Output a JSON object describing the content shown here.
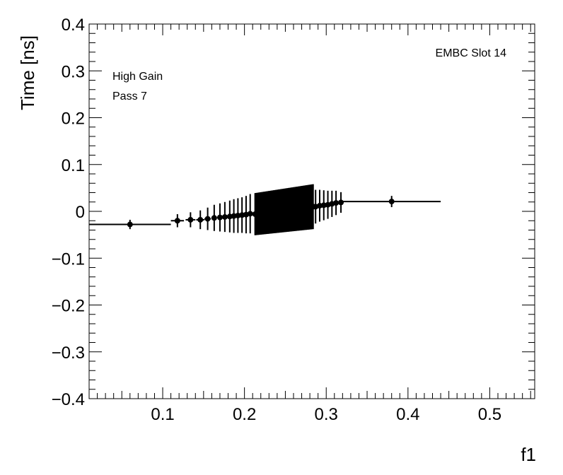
{
  "chart_data": {
    "type": "scatter",
    "title": "",
    "xlabel": "f1",
    "ylabel": "Time [ns]",
    "xlim": [
      0.01,
      0.555
    ],
    "ylim": [
      -0.4,
      0.4
    ],
    "x_ticks": [
      0.1,
      0.2,
      0.3,
      0.4,
      0.5
    ],
    "y_ticks": [
      -0.4,
      -0.3,
      -0.2,
      -0.1,
      0,
      0.1,
      0.2,
      0.3,
      0.4
    ],
    "x_tick_labels": [
      "0.1",
      "0.2",
      "0.3",
      "0.4",
      "0.5"
    ],
    "y_tick_labels": [
      "−0.4",
      "−0.3",
      "−0.2",
      "−0.1",
      "0",
      "0.1",
      "0.2",
      "0.3",
      "0.4"
    ],
    "grid": false,
    "annotations": {
      "slot": "EMBC Slot 14",
      "gain": "High Gain",
      "pass": "Pass 7"
    },
    "series": [
      {
        "points": [
          {
            "x": 0.06,
            "y": -0.028,
            "xerr_lo": 0.05,
            "xerr_hi": 0.05,
            "yerr": 0.01
          },
          {
            "x": 0.118,
            "y": -0.02,
            "xerr_lo": 0.008,
            "xerr_hi": 0.008,
            "yerr": 0.014
          },
          {
            "x": 0.134,
            "y": -0.018,
            "xerr_lo": 0.006,
            "xerr_hi": 0.006,
            "yerr": 0.016
          },
          {
            "x": 0.146,
            "y": -0.018,
            "xerr_lo": 0.005,
            "xerr_hi": 0.005,
            "yerr": 0.02
          },
          {
            "x": 0.155,
            "y": -0.016,
            "xerr_lo": 0.004,
            "xerr_hi": 0.004,
            "yerr": 0.024
          },
          {
            "x": 0.163,
            "y": -0.014,
            "xerr_lo": 0.003,
            "xerr_hi": 0.003,
            "yerr": 0.028
          },
          {
            "x": 0.17,
            "y": -0.013,
            "xerr_lo": 0.003,
            "xerr_hi": 0.003,
            "yerr": 0.03
          },
          {
            "x": 0.176,
            "y": -0.012,
            "xerr_lo": 0.003,
            "xerr_hi": 0.003,
            "yerr": 0.032
          },
          {
            "x": 0.182,
            "y": -0.011,
            "xerr_lo": 0.002,
            "xerr_hi": 0.002,
            "yerr": 0.034
          },
          {
            "x": 0.187,
            "y": -0.01,
            "xerr_lo": 0.002,
            "xerr_hi": 0.002,
            "yerr": 0.036
          },
          {
            "x": 0.192,
            "y": -0.009,
            "xerr_lo": 0.002,
            "xerr_hi": 0.002,
            "yerr": 0.037
          },
          {
            "x": 0.197,
            "y": -0.008,
            "xerr_lo": 0.002,
            "xerr_hi": 0.002,
            "yerr": 0.038
          },
          {
            "x": 0.202,
            "y": -0.007,
            "xerr_lo": 0.002,
            "xerr_hi": 0.002,
            "yerr": 0.04
          },
          {
            "x": 0.207,
            "y": -0.005,
            "xerr_lo": 0.002,
            "xerr_hi": 0.002,
            "yerr": 0.042
          },
          {
            "x": 0.287,
            "y": 0.01,
            "xerr_lo": 0.002,
            "xerr_hi": 0.002,
            "yerr": 0.036
          },
          {
            "x": 0.292,
            "y": 0.012,
            "xerr_lo": 0.002,
            "xerr_hi": 0.002,
            "yerr": 0.034
          },
          {
            "x": 0.297,
            "y": 0.013,
            "xerr_lo": 0.002,
            "xerr_hi": 0.002,
            "yerr": 0.032
          },
          {
            "x": 0.302,
            "y": 0.014,
            "xerr_lo": 0.002,
            "xerr_hi": 0.002,
            "yerr": 0.03
          },
          {
            "x": 0.307,
            "y": 0.016,
            "xerr_lo": 0.002,
            "xerr_hi": 0.002,
            "yerr": 0.028
          },
          {
            "x": 0.312,
            "y": 0.018,
            "xerr_lo": 0.003,
            "xerr_hi": 0.003,
            "yerr": 0.026
          },
          {
            "x": 0.318,
            "y": 0.019,
            "xerr_lo": 0.003,
            "xerr_hi": 0.003,
            "yerr": 0.022
          },
          {
            "x": 0.38,
            "y": 0.021,
            "xerr_lo": 0.06,
            "xerr_hi": 0.06,
            "yerr": 0.012
          }
        ],
        "dense_band": {
          "x_start": 0.213,
          "x_end": 0.284,
          "n_points": 60,
          "y_start": -0.006,
          "y_end": 0.01,
          "yerr_start": 0.045,
          "yerr_end": 0.048
        }
      }
    ],
    "colors": {
      "marker": "#000000",
      "axis": "#000000",
      "background": "#ffffff"
    }
  }
}
